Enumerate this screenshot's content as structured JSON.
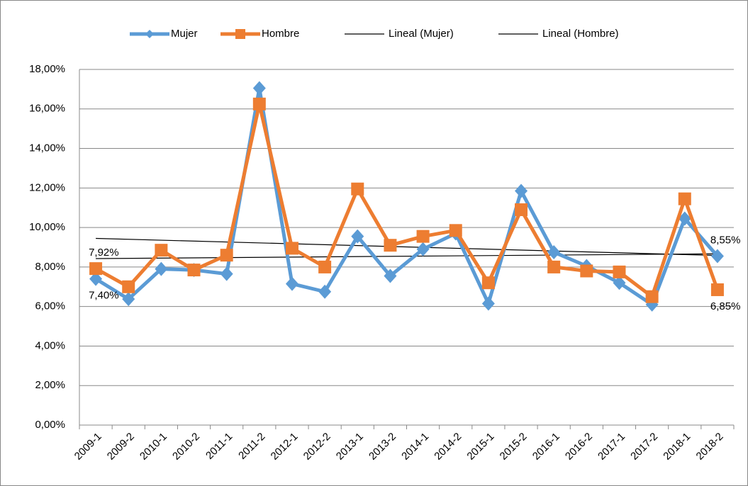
{
  "chart_data": {
    "type": "line",
    "categories": [
      "2009-1",
      "2009-2",
      "2010-1",
      "2010-2",
      "2011-1",
      "2011-2",
      "2012-1",
      "2012-2",
      "2013-1",
      "2013-2",
      "2014-1",
      "2014-2",
      "2015-1",
      "2015-2",
      "2016-1",
      "2016-2",
      "2017-1",
      "2017-2",
      "2018-1",
      "2018-2"
    ],
    "series": [
      {
        "name": "Mujer",
        "color": "#5b9bd5",
        "marker": "diamond",
        "values": [
          7.4,
          6.38,
          7.9,
          7.85,
          7.65,
          17.05,
          7.15,
          6.75,
          9.55,
          7.55,
          8.9,
          9.7,
          6.15,
          11.85,
          8.75,
          8.05,
          7.2,
          6.1,
          10.45,
          8.55
        ],
        "value_labels": [
          "7,40%",
          null,
          null,
          null,
          null,
          null,
          null,
          null,
          null,
          null,
          null,
          null,
          null,
          null,
          null,
          null,
          null,
          null,
          null,
          "8,55%"
        ]
      },
      {
        "name": "Hombre",
        "color": "#ed7d31",
        "marker": "square",
        "values": [
          7.92,
          7.0,
          8.85,
          7.85,
          8.6,
          16.25,
          8.95,
          8.0,
          11.95,
          9.1,
          9.55,
          9.85,
          7.2,
          10.9,
          8.0,
          7.8,
          7.75,
          6.5,
          11.45,
          6.85
        ],
        "value_labels": [
          "7,92%",
          null,
          null,
          null,
          null,
          null,
          null,
          null,
          null,
          null,
          null,
          null,
          null,
          null,
          null,
          null,
          null,
          null,
          null,
          "6,85%"
        ]
      }
    ],
    "trendlines": [
      {
        "name": "Lineal (Mujer)",
        "series": 0,
        "color": "#000000"
      },
      {
        "name": "Lineal (Hombre)",
        "series": 1,
        "color": "#000000"
      }
    ],
    "ylim": [
      0,
      18
    ],
    "yticks": [
      {
        "value": 0,
        "label": "0,00%"
      },
      {
        "value": 2,
        "label": "2,00%"
      },
      {
        "value": 4,
        "label": "4,00%"
      },
      {
        "value": 6,
        "label": "6,00%"
      },
      {
        "value": 8,
        "label": "8,00%"
      },
      {
        "value": 10,
        "label": "10,00%"
      },
      {
        "value": 12,
        "label": "12,00%"
      },
      {
        "value": 14,
        "label": "14,00%"
      },
      {
        "value": 16,
        "label": "16,00%"
      },
      {
        "value": 18,
        "label": "18,00%"
      }
    ],
    "grid": true,
    "legend": "top"
  }
}
